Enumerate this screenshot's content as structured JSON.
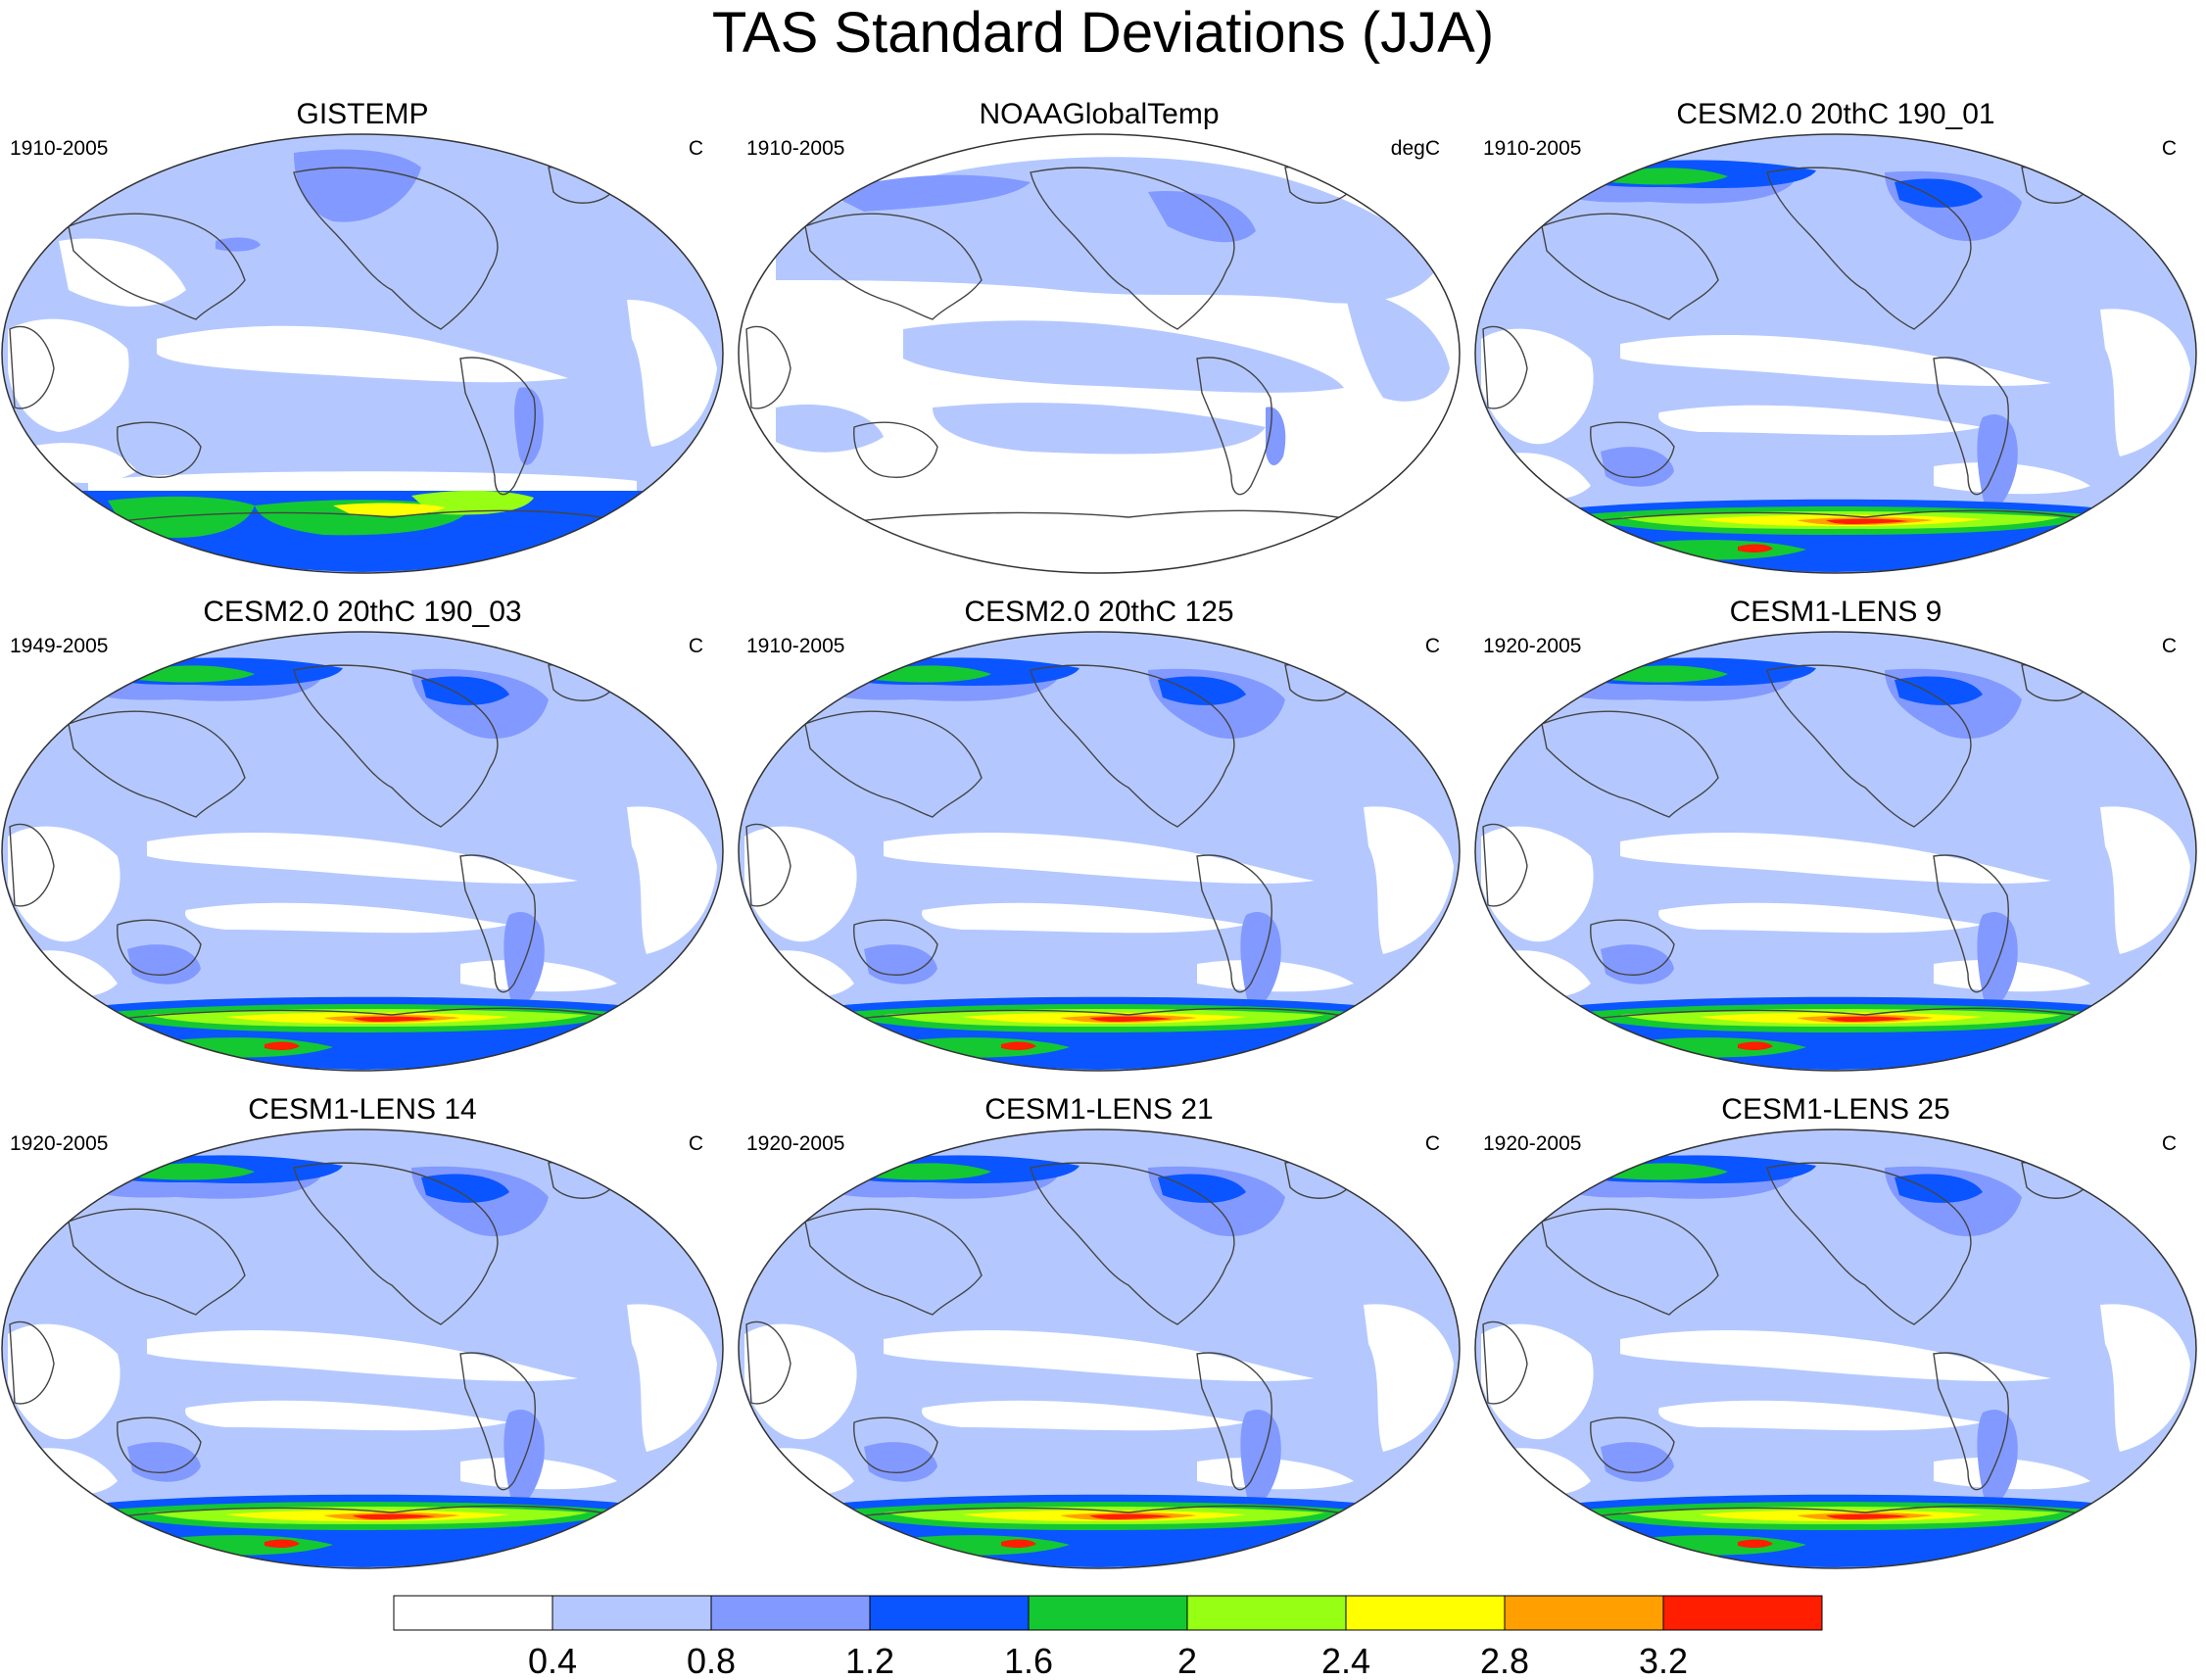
{
  "title": "TAS Standard Deviations (JJA)",
  "palette": {
    "level_0": "#ffffff",
    "level_1": "#b4c8ff",
    "level_2": "#8299ff",
    "level_3": "#0a55ff",
    "level_4": "#14c832",
    "level_5": "#96ff14",
    "level_6": "#ffff00",
    "level_7": "#ffa000",
    "level_8": "#ff1e00",
    "coast": "#444444"
  },
  "colorbar": {
    "labels": [
      "0.4",
      "0.8",
      "1.2",
      "1.6",
      "2",
      "2.4",
      "2.8",
      "3.2"
    ]
  },
  "panels": [
    {
      "title": "GISTEMP",
      "period": "1910-2005",
      "units": "C",
      "style": "gistemp"
    },
    {
      "title": "NOAAGlobalTemp",
      "period": "1910-2005",
      "units": "degC",
      "style": "noaa"
    },
    {
      "title": "CESM2.0 20thC 190_01",
      "period": "1910-2005",
      "units": "C",
      "style": "model"
    },
    {
      "title": "CESM2.0 20thC 190_03",
      "period": "1949-2005",
      "units": "C",
      "style": "model"
    },
    {
      "title": "CESM2.0 20thC 125",
      "period": "1910-2005",
      "units": "C",
      "style": "model"
    },
    {
      "title": "CESM1-LENS 9",
      "period": "1920-2005",
      "units": "C",
      "style": "model"
    },
    {
      "title": "CESM1-LENS 14",
      "period": "1920-2005",
      "units": "C",
      "style": "model"
    },
    {
      "title": "CESM1-LENS 21",
      "period": "1920-2005",
      "units": "C",
      "style": "model"
    },
    {
      "title": "CESM1-LENS 25",
      "period": "1920-2005",
      "units": "C",
      "style": "model"
    }
  ]
}
